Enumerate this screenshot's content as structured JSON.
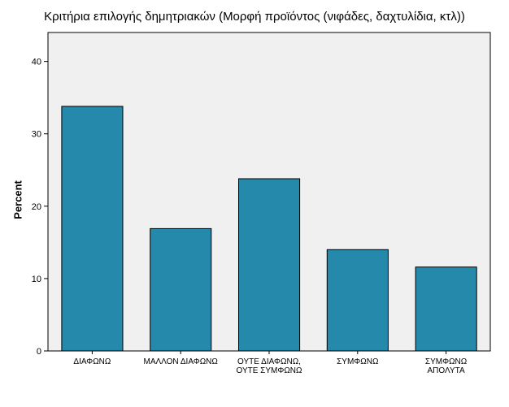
{
  "chart_data": {
    "type": "bar",
    "title": "Κριτήρια επιλογής δημητριακών (Μορφή προϊόντος (νιφάδες, δαχτυλίδια, κτλ))",
    "xlabel": "",
    "ylabel": "Percent",
    "ylim": [
      0,
      44
    ],
    "yticks": [
      0,
      10,
      20,
      30,
      40
    ],
    "grid": false,
    "categories": [
      [
        "ΔΙΑΦΩΝΩ"
      ],
      [
        "ΜΑΛΛΟΝ ΔΙΑΦΩΝΩ"
      ],
      [
        "ΟΥΤΕ ΔΙΑΦΩΝΩ,",
        "ΟΥΤΕ ΣΥΜΦΩΝΩ"
      ],
      [
        "ΣΥΜΦΩΝΩ"
      ],
      [
        "ΣΥΜΦΩΝΩ",
        "ΑΠΟΛΥΤΑ"
      ]
    ],
    "values": [
      33.8,
      16.9,
      23.8,
      14.0,
      11.6
    ],
    "colors": {
      "bar_fill": "#2489ab",
      "bar_stroke": "#000000",
      "plot_background": "#f0f0f0",
      "axis": "#000000"
    }
  }
}
